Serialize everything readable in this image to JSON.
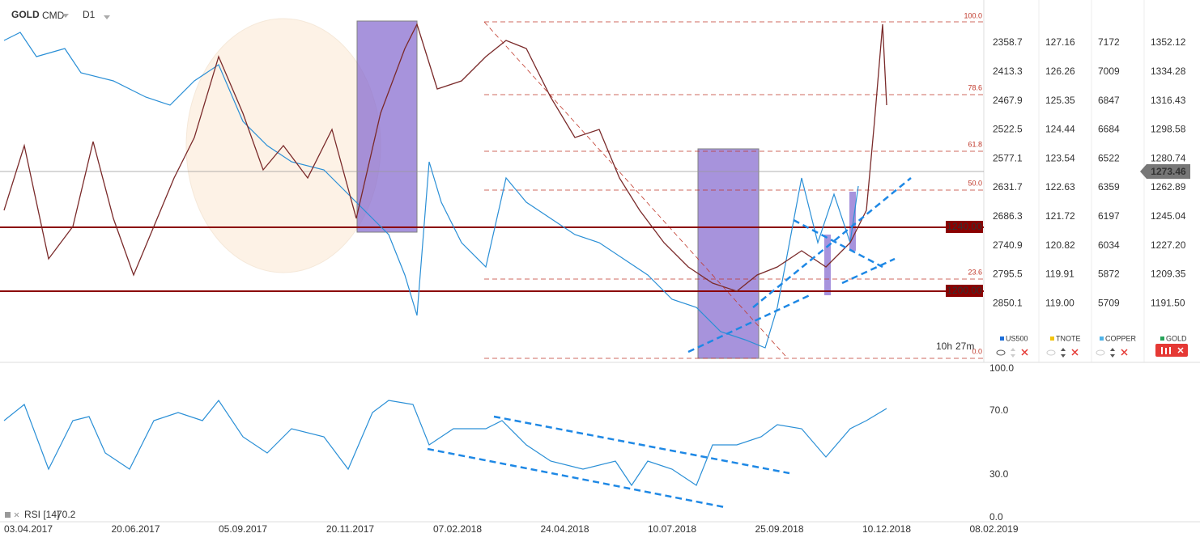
{
  "header": {
    "symbol": "GOLD",
    "kind": "CMD",
    "timeframe": "D1"
  },
  "fib_levels": [
    "100.0",
    "78.6",
    "61.8",
    "50.0",
    "23.6",
    "0.0"
  ],
  "price_axes": [
    [
      "2358.7",
      "2413.3",
      "2467.9",
      "2522.5",
      "2577.1",
      "2631.7",
      "2686.3",
      "2740.9",
      "2795.5",
      "2850.1"
    ],
    [
      "127.16",
      "126.26",
      "125.35",
      "124.44",
      "123.54",
      "122.63",
      "121.72",
      "120.82",
      "119.91",
      "119.00"
    ],
    [
      "7172",
      "7009",
      "6847",
      "6684",
      "6522",
      "6359",
      "6197",
      "6034",
      "5872",
      "5709"
    ],
    [
      "1352.12",
      "1334.28",
      "1316.43",
      "1298.58",
      "1280.74",
      "1262.89",
      "1245.04",
      "1227.20",
      "1209.35",
      "1191.50"
    ]
  ],
  "level_labels": [
    "1240.00",
    "1200.00"
  ],
  "current_price": "1273.46",
  "legend": [
    "US500",
    "TNOTE",
    "COPPER",
    "GOLD"
  ],
  "timer": {
    "hours": "10h",
    "minutes": "27m"
  },
  "rsi": {
    "label": "RSI [14]",
    "value": "70.2",
    "axis": [
      "100.0",
      "70.0",
      "30.0",
      "0.0"
    ]
  },
  "dates": [
    "03.04.2017",
    "20.06.2017",
    "05.09.2017",
    "20.11.2017",
    "07.02.2018",
    "24.04.2018",
    "10.07.2018",
    "25.09.2018",
    "10.12.2018",
    "08.02.2019"
  ]
}
